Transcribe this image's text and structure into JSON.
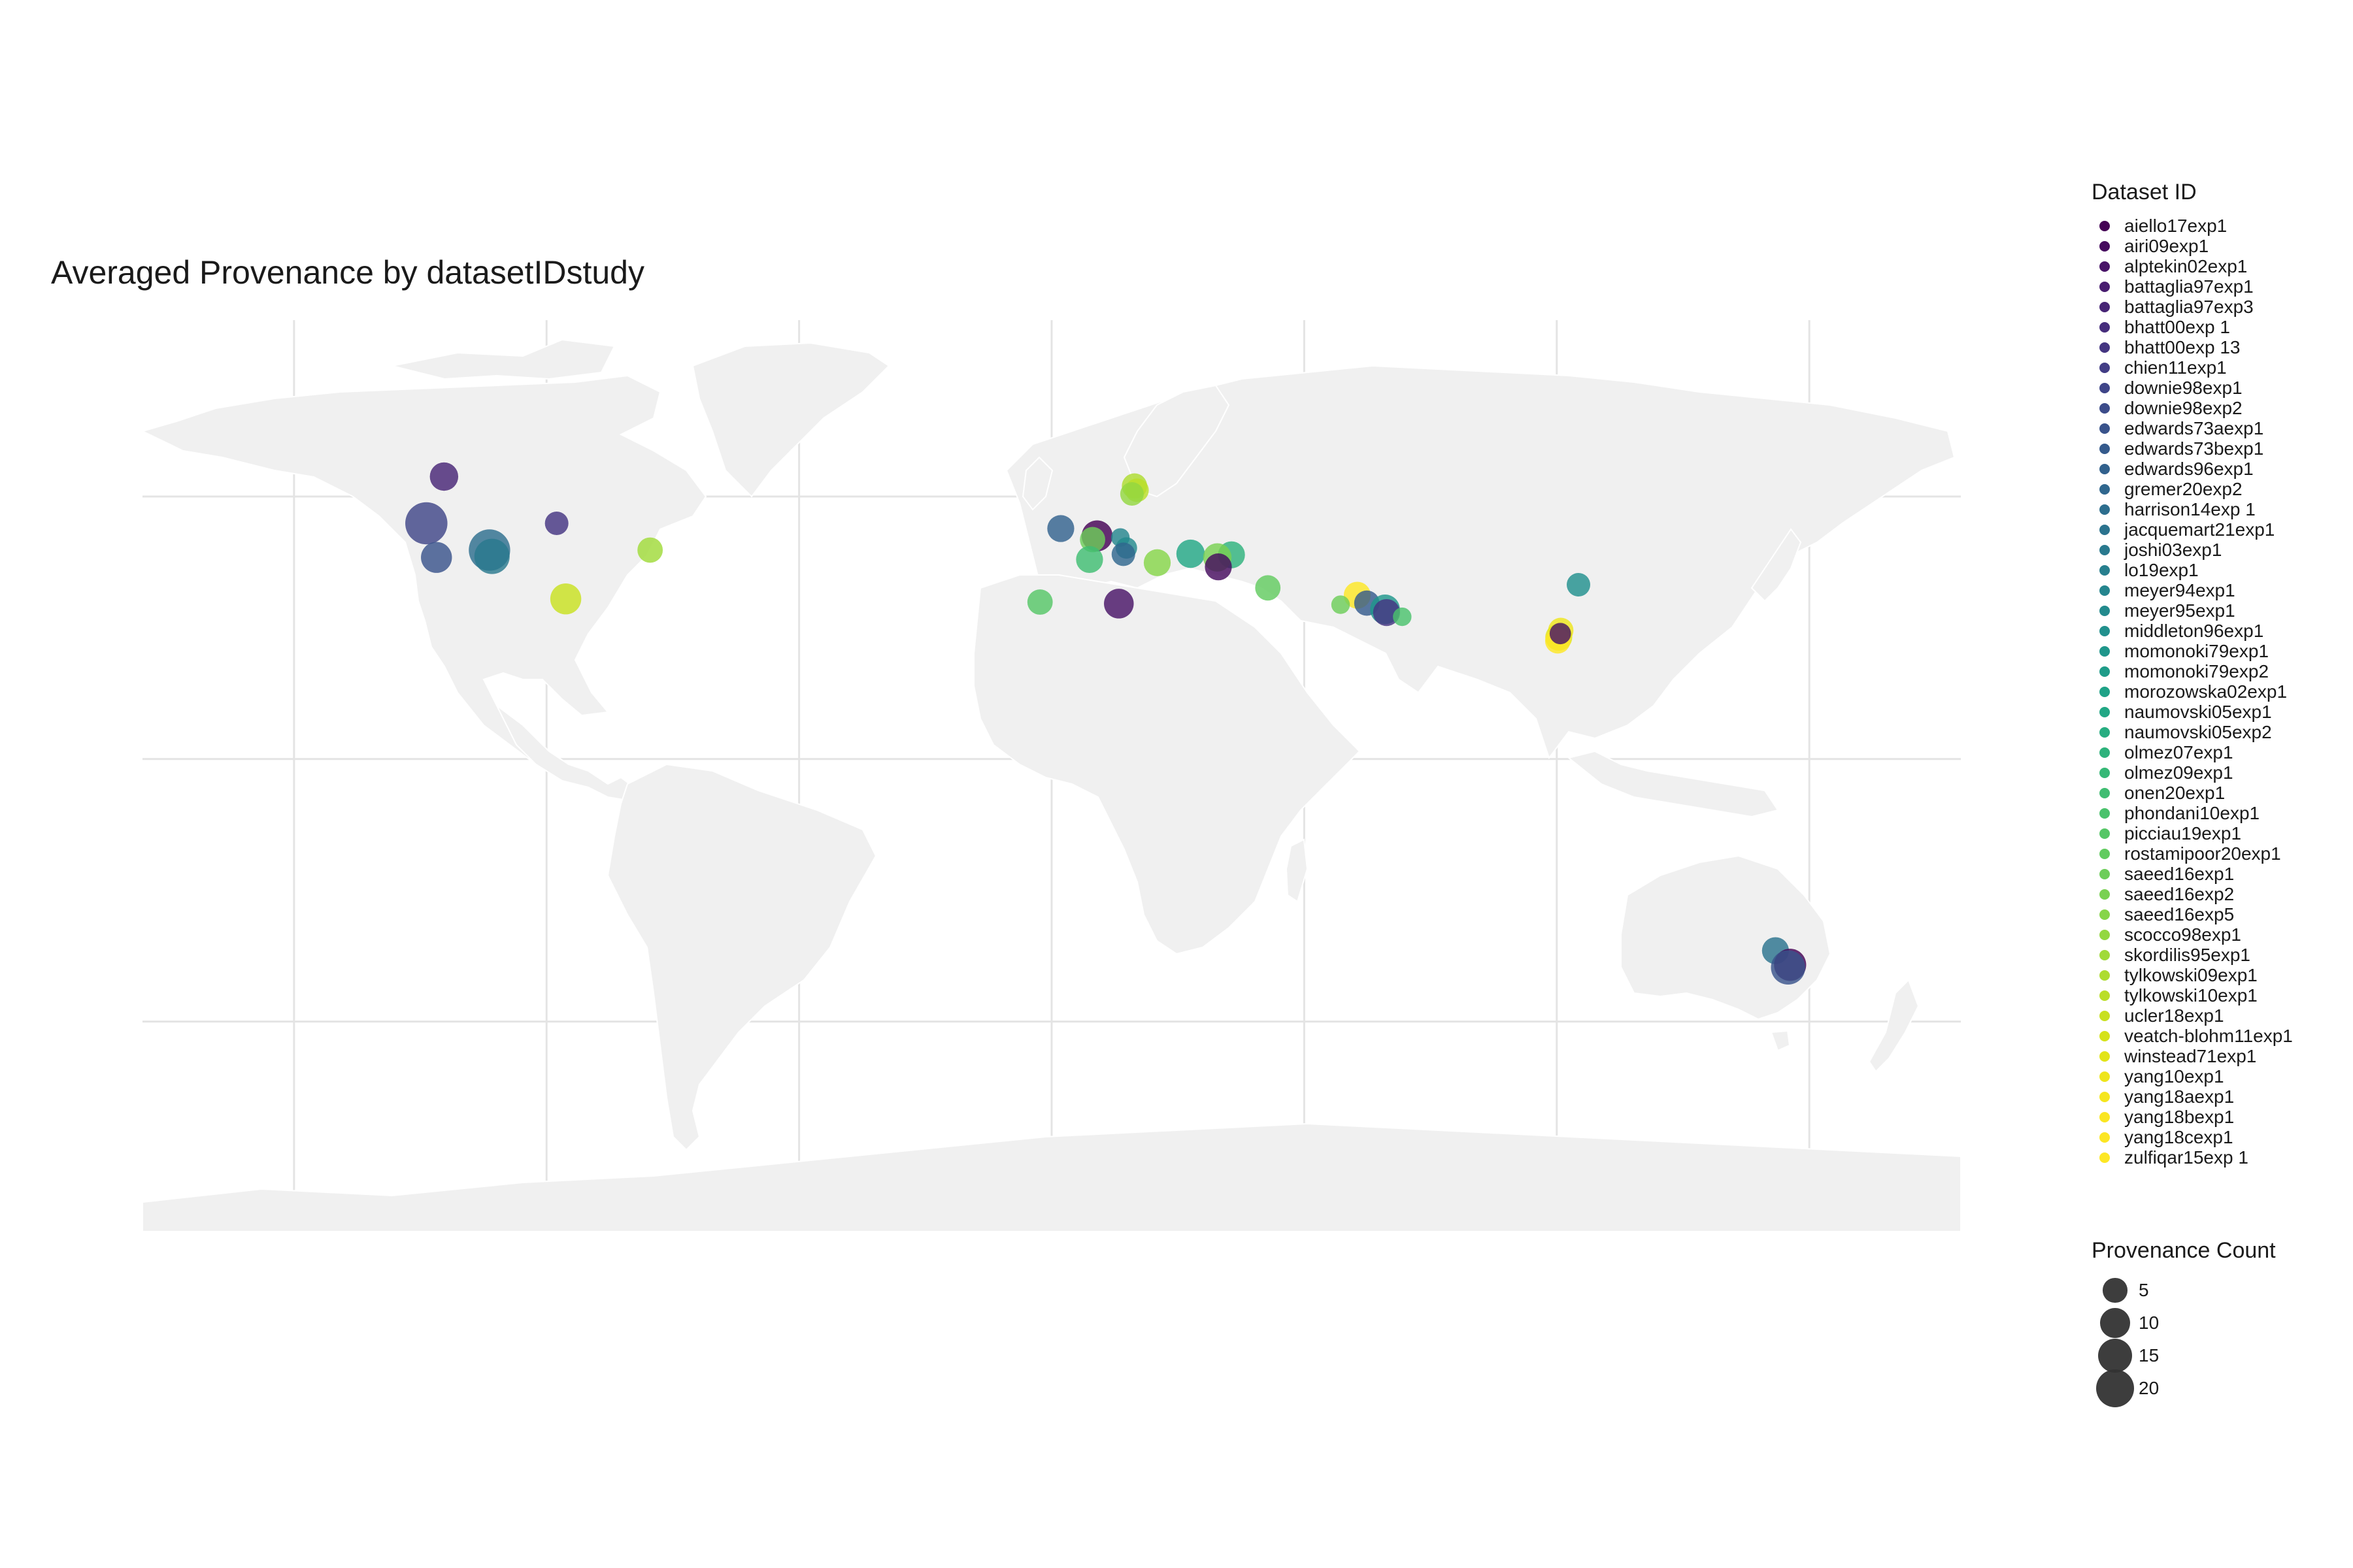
{
  "title": "Averaged Provenance by datasetIDstudy",
  "colors": {
    "land": "#f0f0f0",
    "grid": "#e4e4e4",
    "border": "#ffffff"
  },
  "legend": {
    "title": "Dataset ID",
    "items": [
      {
        "label": "aiello17exp1",
        "color": "#440154"
      },
      {
        "label": "airi09exp1",
        "color": "#460B5E"
      },
      {
        "label": "alptekin02exp1",
        "color": "#481467"
      },
      {
        "label": "battaglia97exp1",
        "color": "#481D6F"
      },
      {
        "label": "battaglia97exp3",
        "color": "#472575"
      },
      {
        "label": "bhatt00exp 1",
        "color": "#462D7C"
      },
      {
        "label": "bhatt00exp 13",
        "color": "#443581"
      },
      {
        "label": "chien11exp1",
        "color": "#423D85"
      },
      {
        "label": "downie98exp1",
        "color": "#3F4588"
      },
      {
        "label": "downie98exp2",
        "color": "#3C4C8A"
      },
      {
        "label": "edwards73aexp1",
        "color": "#39538B"
      },
      {
        "label": "edwards73bexp1",
        "color": "#355A8C"
      },
      {
        "label": "edwards96exp1",
        "color": "#32618D"
      },
      {
        "label": "gremer20exp2",
        "color": "#30678E"
      },
      {
        "label": "harrison14exp 1",
        "color": "#2D6E8E"
      },
      {
        "label": "jacquemart21exp1",
        "color": "#2B738E"
      },
      {
        "label": "joshi03exp1",
        "color": "#29798E"
      },
      {
        "label": "lo19exp1",
        "color": "#277F8E"
      },
      {
        "label": "meyer94exp1",
        "color": "#25858E"
      },
      {
        "label": "meyer95exp1",
        "color": "#238A8D"
      },
      {
        "label": "middleton96exp1",
        "color": "#21908D"
      },
      {
        "label": "momonoki79exp1",
        "color": "#1F968B"
      },
      {
        "label": "momonoki79exp2",
        "color": "#1F9C89"
      },
      {
        "label": "morozowska02exp1",
        "color": "#1FA287"
      },
      {
        "label": "naumovski05exp1",
        "color": "#22A785"
      },
      {
        "label": "naumovski05exp2",
        "color": "#27AD81"
      },
      {
        "label": "olmez07exp1",
        "color": "#2EB27C"
      },
      {
        "label": "olmez09exp1",
        "color": "#36B877"
      },
      {
        "label": "onen20exp1",
        "color": "#40BD72"
      },
      {
        "label": "phondani10exp1",
        "color": "#4AC26C"
      },
      {
        "label": "picciau19exp1",
        "color": "#55C666"
      },
      {
        "label": "rostamipoor20exp1",
        "color": "#61CB5F"
      },
      {
        "label": "saeed16exp1",
        "color": "#6DCD59"
      },
      {
        "label": "saeed16exp2",
        "color": "#79D152"
      },
      {
        "label": "saeed16exp5",
        "color": "#86D549"
      },
      {
        "label": "scocco98exp1",
        "color": "#93D741"
      },
      {
        "label": "skordilis95exp1",
        "color": "#A0DA39"
      },
      {
        "label": "tylkowski09exp1",
        "color": "#ADDC30"
      },
      {
        "label": "tylkowski10exp1",
        "color": "#BADE28"
      },
      {
        "label": "ucler18exp1",
        "color": "#C8E020"
      },
      {
        "label": "veatch-blohm11exp1",
        "color": "#D5E21A"
      },
      {
        "label": "winstead71exp1",
        "color": "#E2E418"
      },
      {
        "label": "yang10exp1",
        "color": "#EEE51C"
      },
      {
        "label": "yang18aexp1",
        "color": "#F5E61E"
      },
      {
        "label": "yang18bexp1",
        "color": "#FAE622"
      },
      {
        "label": "yang18cexp1",
        "color": "#FCE624"
      },
      {
        "label": "zulfiqar15exp 1",
        "color": "#FDE725"
      }
    ]
  },
  "size_legend": {
    "title": "Provenance Count",
    "items": [
      {
        "label": "5",
        "value": 5
      },
      {
        "label": "10",
        "value": 10
      },
      {
        "label": "15",
        "value": 15
      },
      {
        "label": "20",
        "value": 20
      }
    ]
  },
  "points": [
    {
      "lon": -123.8,
      "lat": 44.9,
      "count": 20,
      "color": "#3F4588"
    },
    {
      "lon": -120.3,
      "lat": 53.8,
      "count": 6,
      "color": "#472575"
    },
    {
      "lon": -121.8,
      "lat": 38.4,
      "count": 8,
      "color": "#39538B"
    },
    {
      "lon": -111.3,
      "lat": 39.8,
      "count": 19,
      "color": "#2D6E8E"
    },
    {
      "lon": -110.8,
      "lat": 38.6,
      "count": 12,
      "color": "#29798E"
    },
    {
      "lon": -98.0,
      "lat": 44.9,
      "count": 3,
      "color": "#443581"
    },
    {
      "lon": -79.5,
      "lat": 39.8,
      "count": 4,
      "color": "#A0DA39"
    },
    {
      "lon": -96.2,
      "lat": 30.5,
      "count": 8,
      "color": "#C8E020"
    },
    {
      "lon": 1.8,
      "lat": 43.9,
      "count": 5,
      "color": "#32618D"
    },
    {
      "lon": 9.0,
      "lat": 42.5,
      "count": 8,
      "color": "#440154"
    },
    {
      "lon": 8.1,
      "lat": 41.8,
      "count": 4,
      "color": "#6DCD59"
    },
    {
      "lon": 16.4,
      "lat": 52.0,
      "count": 4,
      "color": "#ADDC30"
    },
    {
      "lon": 16.9,
      "lat": 51.2,
      "count": 3,
      "color": "#BADE28"
    },
    {
      "lon": 15.9,
      "lat": 50.5,
      "count": 3,
      "color": "#93D741"
    },
    {
      "lon": 13.6,
      "lat": 42.2,
      "count": 1,
      "color": "#25858E"
    },
    {
      "lon": 14.8,
      "lat": 40.2,
      "count": 2,
      "color": "#238A8D"
    },
    {
      "lon": 14.2,
      "lat": 39.0,
      "count": 3,
      "color": "#30678E"
    },
    {
      "lon": 7.5,
      "lat": 38.0,
      "count": 5,
      "color": "#40BD72"
    },
    {
      "lon": 20.9,
      "lat": 37.4,
      "count": 5,
      "color": "#86D549"
    },
    {
      "lon": 27.5,
      "lat": 39.1,
      "count": 6,
      "color": "#22A785"
    },
    {
      "lon": 35.6,
      "lat": 38.9,
      "count": 5,
      "color": "#2EB27C"
    },
    {
      "lon": 32.8,
      "lat": 38.4,
      "count": 6,
      "color": "#79D152"
    },
    {
      "lon": 33.0,
      "lat": 36.6,
      "count": 5,
      "color": "#460B5E"
    },
    {
      "lon": -2.3,
      "lat": 29.9,
      "count": 4,
      "color": "#55C666"
    },
    {
      "lon": 13.3,
      "lat": 29.6,
      "count": 7,
      "color": "#481467"
    },
    {
      "lon": 42.8,
      "lat": 32.6,
      "count": 4,
      "color": "#61CB5F"
    },
    {
      "lon": 60.5,
      "lat": 31.2,
      "count": 5,
      "color": "#FCE624"
    },
    {
      "lon": 62.4,
      "lat": 29.7,
      "count": 4,
      "color": "#355A8C"
    },
    {
      "lon": 66.0,
      "lat": 28.5,
      "count": 7,
      "color": "#1F968B"
    },
    {
      "lon": 66.3,
      "lat": 27.9,
      "count": 5,
      "color": "#443581"
    },
    {
      "lon": 69.4,
      "lat": 27.1,
      "count": 1,
      "color": "#4AC26C"
    },
    {
      "lon": 57.2,
      "lat": 29.4,
      "count": 1,
      "color": "#6DCD59"
    },
    {
      "lon": 104.3,
      "lat": 33.2,
      "count": 3,
      "color": "#21908D"
    },
    {
      "lon": 100.8,
      "lat": 24.5,
      "count": 4,
      "color": "#EEE51C"
    },
    {
      "lon": 100.4,
      "lat": 23.2,
      "count": 5,
      "color": "#E2E418"
    },
    {
      "lon": 100.2,
      "lat": 22.5,
      "count": 4,
      "color": "#FDE725"
    },
    {
      "lon": 100.7,
      "lat": 23.9,
      "count": 2,
      "color": "#481467"
    },
    {
      "lon": 143.3,
      "lat": -36.5,
      "count": 5,
      "color": "#2B738E"
    },
    {
      "lon": 146.2,
      "lat": -39.2,
      "count": 9,
      "color": "#440154"
    },
    {
      "lon": 145.8,
      "lat": -39.7,
      "count": 11,
      "color": "#39538B"
    }
  ]
}
